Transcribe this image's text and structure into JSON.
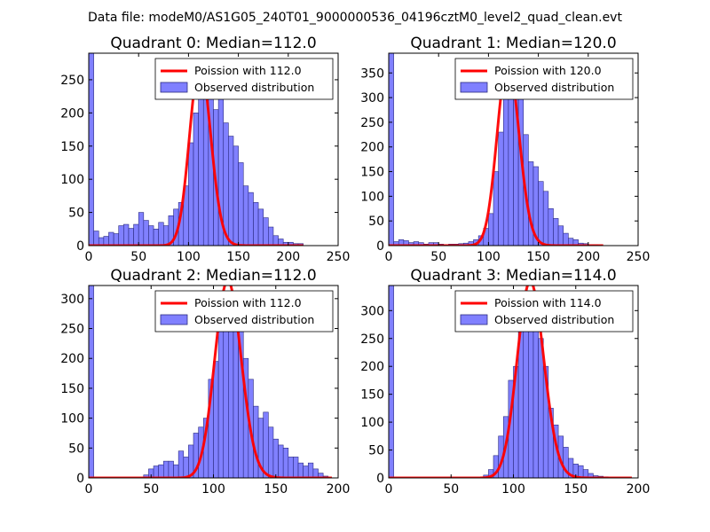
{
  "figure_title": "Data file: modeM0/AS1G05_240T01_9000000536_04196cztM0_level2_quad_clean.evt",
  "colors": {
    "bar_fill": "#8080ff",
    "bar_edge": "#2a2a80",
    "poisson": "#ff0000"
  },
  "chart_data": [
    {
      "type": "bar",
      "title": "Quadrant 0: Median=112.0",
      "median": 112.0,
      "legend": [
        "Poission with 112.0",
        "Observed distribution"
      ],
      "xlim": [
        0,
        250
      ],
      "ylim": [
        0,
        290
      ],
      "xticks": [
        0,
        50,
        100,
        150,
        200,
        250
      ],
      "yticks": [
        0,
        50,
        100,
        150,
        200,
        250
      ],
      "bin_width": 5,
      "bins": [
        [
          0,
          290
        ],
        [
          5,
          22
        ],
        [
          10,
          12
        ],
        [
          15,
          14
        ],
        [
          20,
          20
        ],
        [
          25,
          18
        ],
        [
          30,
          30
        ],
        [
          35,
          32
        ],
        [
          40,
          26
        ],
        [
          45,
          32
        ],
        [
          50,
          50
        ],
        [
          55,
          38
        ],
        [
          60,
          30
        ],
        [
          65,
          25
        ],
        [
          70,
          35
        ],
        [
          75,
          30
        ],
        [
          80,
          45
        ],
        [
          85,
          55
        ],
        [
          90,
          65
        ],
        [
          95,
          90
        ],
        [
          100,
          155
        ],
        [
          105,
          200
        ],
        [
          110,
          235
        ],
        [
          115,
          250
        ],
        [
          120,
          225
        ],
        [
          125,
          205
        ],
        [
          130,
          245
        ],
        [
          135,
          185
        ],
        [
          140,
          165
        ],
        [
          145,
          150
        ],
        [
          150,
          125
        ],
        [
          155,
          90
        ],
        [
          160,
          80
        ],
        [
          165,
          65
        ],
        [
          170,
          55
        ],
        [
          175,
          42
        ],
        [
          180,
          28
        ],
        [
          185,
          15
        ],
        [
          190,
          10
        ],
        [
          195,
          5
        ],
        [
          200,
          5
        ],
        [
          205,
          3
        ],
        [
          210,
          3
        ]
      ],
      "poisson_x_range": [
        0,
        215
      ]
    },
    {
      "type": "bar",
      "title": "Quadrant 1: Median=120.0",
      "median": 120.0,
      "legend": [
        "Poission with 120.0",
        "Observed distribution"
      ],
      "xlim": [
        0,
        250
      ],
      "ylim": [
        0,
        390
      ],
      "xticks": [
        0,
        50,
        100,
        150,
        200,
        250
      ],
      "yticks": [
        0,
        50,
        100,
        150,
        200,
        250,
        300,
        350
      ],
      "bin_width": 5,
      "bins": [
        [
          0,
          390
        ],
        [
          5,
          8
        ],
        [
          10,
          12
        ],
        [
          15,
          10
        ],
        [
          20,
          6
        ],
        [
          25,
          8
        ],
        [
          30,
          6
        ],
        [
          35,
          3
        ],
        [
          40,
          6
        ],
        [
          45,
          6
        ],
        [
          50,
          3
        ],
        [
          55,
          2
        ],
        [
          60,
          3
        ],
        [
          65,
          3
        ],
        [
          70,
          4
        ],
        [
          75,
          5
        ],
        [
          80,
          8
        ],
        [
          85,
          12
        ],
        [
          90,
          20
        ],
        [
          95,
          35
        ],
        [
          100,
          65
        ],
        [
          105,
          150
        ],
        [
          110,
          230
        ],
        [
          115,
          300
        ],
        [
          120,
          340
        ],
        [
          125,
          330
        ],
        [
          130,
          300
        ],
        [
          135,
          225
        ],
        [
          140,
          170
        ],
        [
          145,
          160
        ],
        [
          150,
          130
        ],
        [
          155,
          110
        ],
        [
          160,
          75
        ],
        [
          165,
          55
        ],
        [
          170,
          40
        ],
        [
          175,
          25
        ],
        [
          180,
          15
        ],
        [
          185,
          12
        ],
        [
          190,
          5
        ],
        [
          195,
          4
        ],
        [
          200,
          2
        ],
        [
          205,
          2
        ]
      ],
      "poisson_x_range": [
        0,
        215
      ]
    },
    {
      "type": "bar",
      "title": "Quadrant 2: Median=112.0",
      "median": 112.0,
      "legend": [
        "Poission with 112.0",
        "Observed distribution"
      ],
      "xlim": [
        0,
        200
      ],
      "ylim": [
        0,
        322
      ],
      "xticks": [
        0,
        50,
        100,
        150,
        200
      ],
      "yticks": [
        0,
        50,
        100,
        150,
        200,
        250,
        300
      ],
      "bin_width": 4,
      "bins": [
        [
          0,
          322
        ],
        [
          44,
          5
        ],
        [
          48,
          15
        ],
        [
          52,
          20
        ],
        [
          56,
          22
        ],
        [
          60,
          28
        ],
        [
          64,
          28
        ],
        [
          68,
          22
        ],
        [
          72,
          45
        ],
        [
          76,
          35
        ],
        [
          80,
          55
        ],
        [
          84,
          75
        ],
        [
          88,
          85
        ],
        [
          92,
          100
        ],
        [
          96,
          165
        ],
        [
          100,
          195
        ],
        [
          104,
          250
        ],
        [
          108,
          280
        ],
        [
          112,
          300
        ],
        [
          116,
          270
        ],
        [
          120,
          255
        ],
        [
          124,
          200
        ],
        [
          128,
          165
        ],
        [
          132,
          120
        ],
        [
          136,
          100
        ],
        [
          140,
          110
        ],
        [
          144,
          85
        ],
        [
          148,
          65
        ],
        [
          152,
          55
        ],
        [
          156,
          50
        ],
        [
          160,
          35
        ],
        [
          164,
          35
        ],
        [
          168,
          25
        ],
        [
          172,
          20
        ],
        [
          176,
          25
        ],
        [
          180,
          15
        ],
        [
          184,
          8
        ],
        [
          188,
          3
        ]
      ],
      "poisson_x_range": [
        0,
        195
      ]
    },
    {
      "type": "bar",
      "title": "Quadrant 3: Median=114.0",
      "median": 114.0,
      "legend": [
        "Poission with 114.0",
        "Observed distribution"
      ],
      "xlim": [
        0,
        200
      ],
      "ylim": [
        0,
        345
      ],
      "xticks": [
        0,
        50,
        100,
        150,
        200
      ],
      "yticks": [
        0,
        50,
        100,
        150,
        200,
        250,
        300
      ],
      "bin_width": 4,
      "bins": [
        [
          0,
          345
        ],
        [
          76,
          5
        ],
        [
          80,
          15
        ],
        [
          84,
          40
        ],
        [
          88,
          75
        ],
        [
          92,
          110
        ],
        [
          96,
          175
        ],
        [
          100,
          200
        ],
        [
          104,
          275
        ],
        [
          108,
          300
        ],
        [
          112,
          315
        ],
        [
          116,
          320
        ],
        [
          120,
          250
        ],
        [
          124,
          200
        ],
        [
          128,
          125
        ],
        [
          132,
          95
        ],
        [
          136,
          75
        ],
        [
          140,
          55
        ],
        [
          144,
          35
        ],
        [
          148,
          25
        ],
        [
          152,
          22
        ],
        [
          156,
          15
        ],
        [
          160,
          8
        ],
        [
          164,
          4
        ],
        [
          168,
          3
        ],
        [
          172,
          2
        ]
      ],
      "poisson_x_range": [
        0,
        195
      ]
    }
  ]
}
